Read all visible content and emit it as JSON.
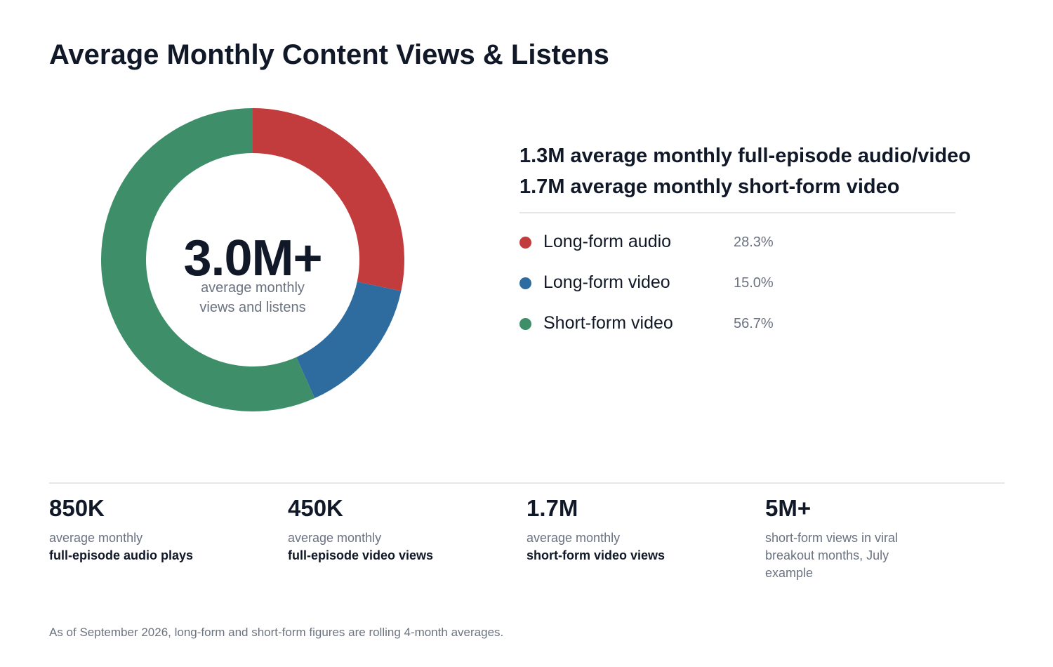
{
  "title": "Average Monthly Content Views & Listens",
  "center": {
    "value": "3.0M+",
    "caption_line1": "average monthly",
    "caption_line2": "views and listens"
  },
  "headlines": [
    "1.3M average monthly full-episode audio/video",
    "1.7M average monthly short-form video"
  ],
  "legend": [
    {
      "label": "Long-form audio",
      "pct": "28.3%"
    },
    {
      "label": "Long-form video",
      "pct": "15.0%"
    },
    {
      "label": "Short-form video",
      "pct": "56.7%"
    }
  ],
  "chart_data": {
    "type": "pie",
    "style": "donut",
    "center_label": "3.0M+",
    "categories": [
      "Long-form audio",
      "Long-form video",
      "Short-form video"
    ],
    "values": [
      28.3,
      15.0,
      56.7
    ],
    "colors": [
      "#c23b3d",
      "#2e6b9e",
      "#3f8e6a"
    ],
    "legend_position": "right"
  },
  "stats": [
    {
      "value": "850K",
      "caption": "average monthly",
      "strong": "full-episode audio plays"
    },
    {
      "value": "450K",
      "caption": "average monthly",
      "strong": "full-episode video views"
    },
    {
      "value": "1.7M",
      "caption": "average monthly",
      "strong": "short-form video views"
    },
    {
      "value": "5M+",
      "caption": "short-form views in viral breakout months, July example",
      "strong": ""
    }
  ],
  "footnote": "As of September 2026, long-form and short-form figures are rolling 4-month averages.",
  "colors": {
    "text": "#111827",
    "muted": "#6b7280",
    "rule": "#e5e7eb"
  }
}
